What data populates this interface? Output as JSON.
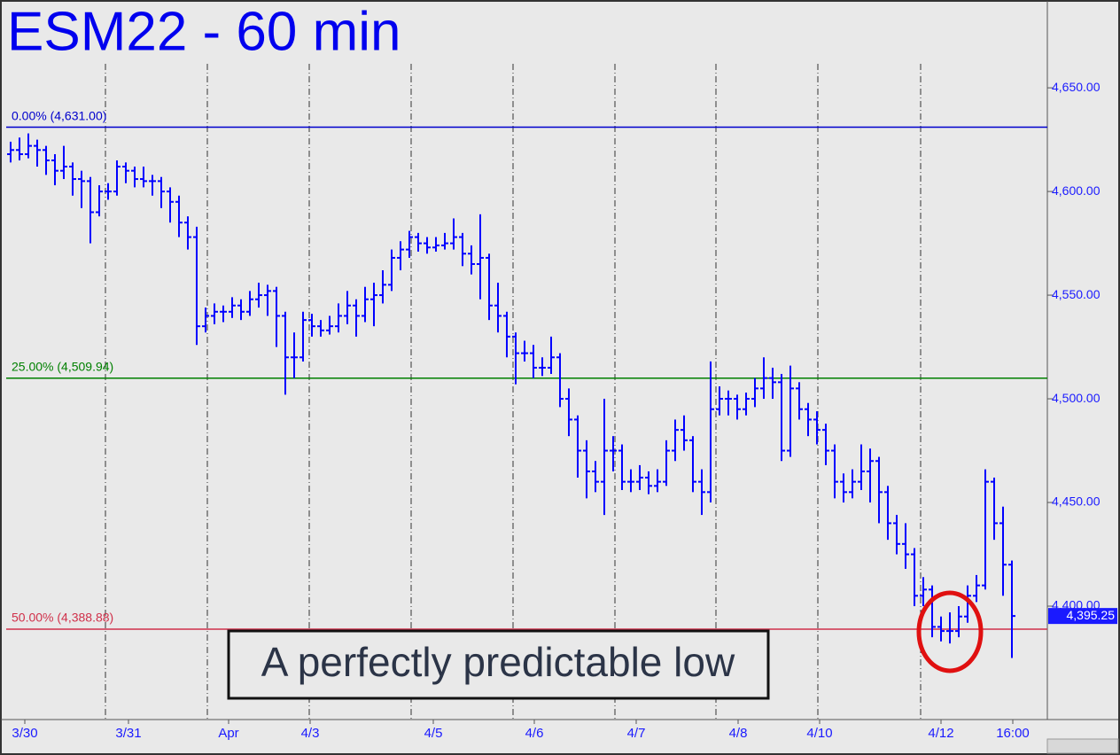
{
  "chart_data": {
    "type": "ohlc",
    "title": "ESM22 - 60 min",
    "annotation": "A perfectly predictable low",
    "color": "#0000ff",
    "ylim": [
      4345.3,
      4691.5
    ],
    "xlim": [
      -0.5,
      117
    ],
    "yticks": [
      {
        "value": 4400,
        "label": "4,400.00"
      },
      {
        "value": 4450,
        "label": "4,450.00"
      },
      {
        "value": 4500,
        "label": "4,500.00"
      },
      {
        "value": 4550,
        "label": "4,550.00"
      },
      {
        "value": 4600,
        "label": "4,600.00"
      },
      {
        "value": 4650,
        "label": "4,650.00"
      }
    ],
    "xticks": [
      {
        "value": 1.6,
        "label": "3/30"
      },
      {
        "value": 13.3,
        "label": "3/31"
      },
      {
        "value": 24.6,
        "label": "Apr"
      },
      {
        "value": 33.8,
        "label": "4/3"
      },
      {
        "value": 47.7,
        "label": "4/5"
      },
      {
        "value": 59.1,
        "label": "4/6"
      },
      {
        "value": 70.6,
        "label": "4/7"
      },
      {
        "value": 82.1,
        "label": "4/8"
      },
      {
        "value": 91.3,
        "label": "4/10"
      },
      {
        "value": 105,
        "label": "4/12"
      },
      {
        "value": 113.1,
        "label": "16:00"
      }
    ],
    "session_breaks": [
      10.7,
      22.2,
      33.7,
      45.2,
      56.7,
      68.2,
      79.6,
      91.1,
      102.7
    ],
    "levels": [
      {
        "value": 4631,
        "label": "0.00% (4,631.00)",
        "color": "#0000cc"
      },
      {
        "value": 4509.94,
        "label": "25.00% (4,509.94)",
        "color": "#008000"
      },
      {
        "value": 4388.88,
        "label": "50.00% (4,388.88)",
        "color": "#d0304a"
      }
    ],
    "last": {
      "value": 4395.25,
      "label": "4,395.25"
    },
    "open": [
      4618,
      4620,
      4618,
      4622,
      4620,
      4615,
      4610,
      4612,
      4606,
      4605,
      4590,
      4600,
      4600,
      4612,
      4610,
      4606,
      4605,
      4605,
      4600,
      4595,
      4585,
      4578,
      4535,
      4540,
      4542,
      4542,
      4545,
      4542,
      4548,
      4550,
      4552,
      4540,
      4520,
      4520,
      4538,
      4535,
      4533,
      4535,
      4540,
      4545,
      4540,
      4548,
      4550,
      4555,
      4568,
      4572,
      4578,
      4575,
      4573,
      4574,
      4575,
      4578,
      4570,
      4565,
      4568,
      4545,
      4540,
      4530,
      4522,
      4522,
      4515,
      4515,
      4520,
      4500,
      4490,
      4475,
      4465,
      4460,
      4475,
      4475,
      4460,
      4460,
      4462,
      4458,
      4460,
      4475,
      4485,
      4480,
      4460,
      4455,
      4495,
      4500,
      4500,
      4495,
      4500,
      4505,
      4510,
      4508,
      4475,
      4505,
      4495,
      4490,
      4485,
      4475,
      4460,
      4455,
      4460,
      4465,
      4470,
      4455,
      4440,
      4430,
      4425,
      4405,
      4408,
      4390,
      4388,
      4388,
      4395,
      4405,
      4410,
      4460,
      4440,
      4420
    ],
    "high": [
      4624,
      4626,
      4628,
      4625,
      4622,
      4618,
      4622,
      4614,
      4610,
      4607,
      4603,
      4604,
      4615,
      4614,
      4612,
      4612,
      4608,
      4607,
      4602,
      4598,
      4588,
      4583,
      4544,
      4546,
      4545,
      4549,
      4548,
      4552,
      4556,
      4555,
      4554,
      4542,
      4532,
      4542,
      4541,
      4538,
      4540,
      4546,
      4552,
      4548,
      4554,
      4556,
      4562,
      4572,
      4576,
      4581,
      4580,
      4578,
      4578,
      4580,
      4587,
      4580,
      4574,
      4589,
      4570,
      4556,
      4542,
      4532,
      4528,
      4526,
      4520,
      4530,
      4522,
      4505,
      4492,
      4480,
      4470,
      4500,
      4482,
      4478,
      4466,
      4468,
      4465,
      4466,
      4480,
      4490,
      4492,
      4482,
      4466,
      4518,
      4506,
      4504,
      4502,
      4503,
      4510,
      4520,
      4515,
      4512,
      4516,
      4508,
      4498,
      4494,
      4488,
      4478,
      4464,
      4466,
      4478,
      4476,
      4472,
      4458,
      4444,
      4440,
      4428,
      4414,
      4410,
      4395,
      4397,
      4400,
      4410,
      4415,
      4466,
      4462,
      4448,
      4422
    ],
    "low": [
      4614,
      4615,
      4616,
      4612,
      4608,
      4603,
      4606,
      4598,
      4592,
      4575,
      4588,
      4596,
      4598,
      4604,
      4602,
      4602,
      4598,
      4592,
      4585,
      4578,
      4572,
      4526,
      4532,
      4536,
      4537,
      4539,
      4538,
      4540,
      4544,
      4540,
      4525,
      4502,
      4510,
      4518,
      4530,
      4530,
      4531,
      4532,
      4536,
      4530,
      4537,
      4535,
      4546,
      4552,
      4562,
      4568,
      4571,
      4570,
      4571,
      4572,
      4572,
      4564,
      4560,
      4548,
      4538,
      4532,
      4520,
      4507,
      4518,
      4510,
      4511,
      4512,
      4496,
      4482,
      4462,
      4452,
      4455,
      4444,
      4465,
      4456,
      4455,
      4456,
      4454,
      4455,
      4458,
      4470,
      4475,
      4455,
      4444,
      4450,
      4492,
      4492,
      4490,
      4492,
      4496,
      4500,
      4500,
      4470,
      4472,
      4490,
      4482,
      4478,
      4468,
      4452,
      4450,
      4452,
      4456,
      4450,
      4440,
      4432,
      4425,
      4418,
      4400,
      4400,
      4385,
      4383,
      4382,
      4385,
      4392,
      4402,
      4408,
      4432,
      4405,
      4375
    ],
    "close": [
      4620,
      4618,
      4622,
      4620,
      4615,
      4610,
      4612,
      4606,
      4605,
      4590,
      4600,
      4600,
      4612,
      4610,
      4606,
      4605,
      4605,
      4600,
      4595,
      4585,
      4578,
      4535,
      4540,
      4542,
      4542,
      4545,
      4542,
      4548,
      4550,
      4552,
      4540,
      4520,
      4520,
      4538,
      4535,
      4533,
      4535,
      4540,
      4545,
      4540,
      4548,
      4550,
      4555,
      4568,
      4572,
      4578,
      4575,
      4573,
      4574,
      4575,
      4578,
      4570,
      4565,
      4568,
      4545,
      4540,
      4530,
      4522,
      4522,
      4515,
      4515,
      4520,
      4500,
      4490,
      4475,
      4465,
      4460,
      4475,
      4475,
      4460,
      4460,
      4462,
      4458,
      4460,
      4475,
      4485,
      4480,
      4460,
      4455,
      4495,
      4500,
      4500,
      4495,
      4500,
      4505,
      4510,
      4508,
      4475,
      4505,
      4495,
      4490,
      4485,
      4475,
      4460,
      4455,
      4460,
      4465,
      4470,
      4455,
      4440,
      4430,
      4425,
      4405,
      4408,
      4390,
      4388,
      4388,
      4395,
      4405,
      4410,
      4460,
      4440,
      4420,
      4395.25
    ]
  }
}
